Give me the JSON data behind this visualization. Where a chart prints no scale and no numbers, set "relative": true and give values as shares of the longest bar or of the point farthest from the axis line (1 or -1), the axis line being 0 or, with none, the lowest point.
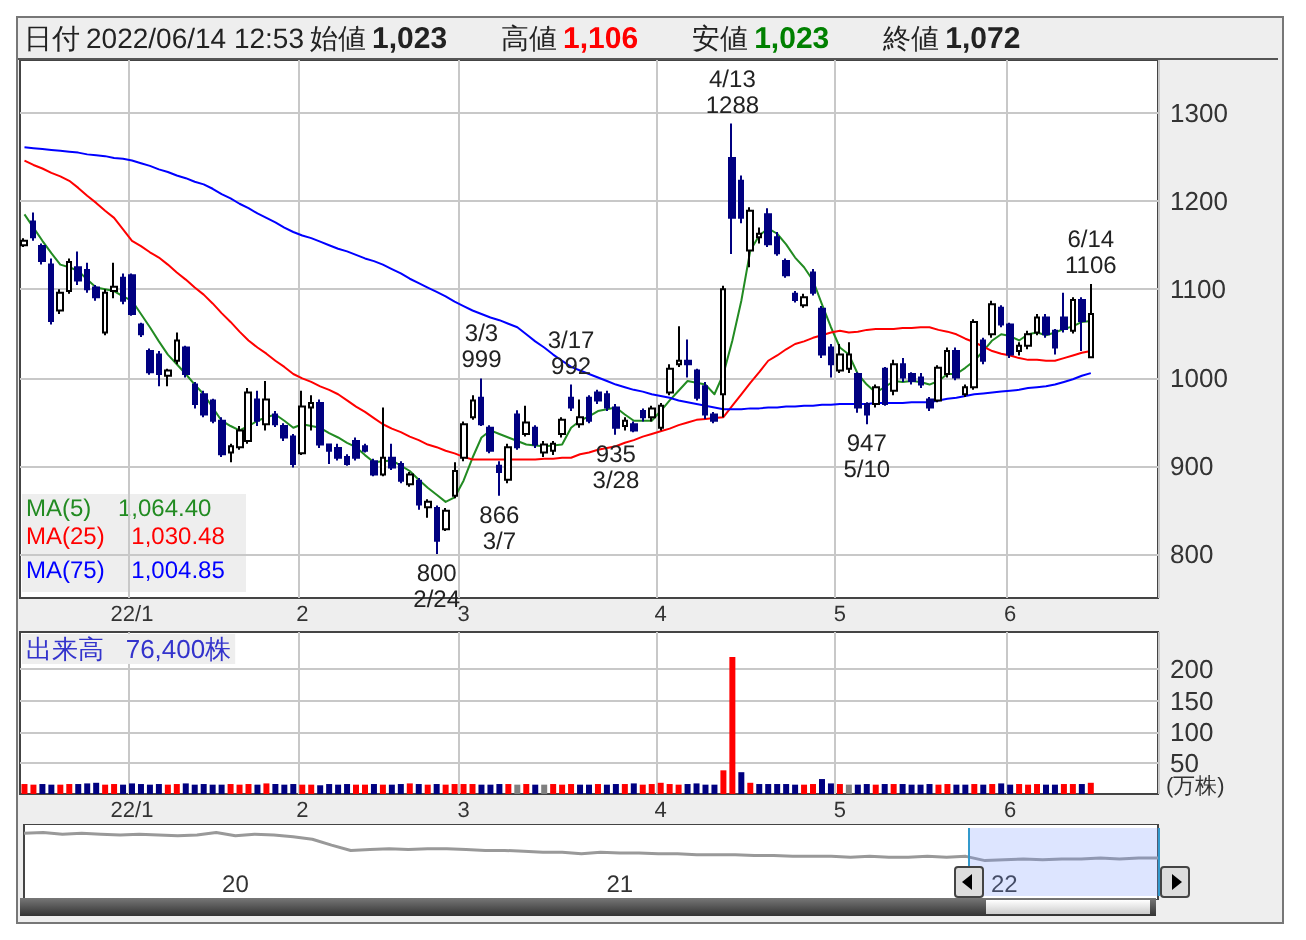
{
  "chart_data": [
    {
      "type": "candlestick",
      "categories": [
        null,
        null,
        null,
        null,
        null,
        null,
        null,
        null,
        null,
        null,
        null,
        null,
        "22/1",
        null,
        null,
        null,
        null,
        null,
        null,
        null,
        null,
        null,
        null,
        null,
        null,
        null,
        null,
        null,
        null,
        null,
        null,
        "2",
        null,
        null,
        null,
        null,
        null,
        null,
        null,
        null,
        null,
        null,
        null,
        null,
        null,
        null,
        null,
        null,
        null,
        "3",
        null,
        null,
        null,
        null,
        null,
        null,
        null,
        null,
        null,
        null,
        null,
        null,
        null,
        null,
        null,
        null,
        null,
        null,
        null,
        null,
        null,
        "4",
        null,
        null,
        null,
        null,
        null,
        null,
        null,
        null,
        null,
        null,
        null,
        null,
        null,
        null,
        null,
        null,
        null,
        null,
        null,
        "5",
        null,
        null,
        null,
        null,
        null,
        null,
        null,
        null,
        null,
        null,
        null,
        null,
        null,
        null,
        null,
        null,
        null,
        null,
        "6",
        null,
        null,
        null,
        null,
        null,
        null,
        null,
        null,
        null
      ],
      "ohlc": [
        [
          1150,
          1158,
          1148,
          1155
        ],
        [
          1177,
          1187,
          1155,
          1159
        ],
        [
          1149,
          1152,
          1128,
          1132
        ],
        [
          1128,
          1135,
          1060,
          1064
        ],
        [
          1076,
          1100,
          1072,
          1096
        ],
        [
          1098,
          1135,
          1095,
          1131
        ],
        [
          1125,
          1143,
          1105,
          1110
        ],
        [
          1122,
          1130,
          1096,
          1100
        ],
        [
          1102,
          1105,
          1087,
          1091
        ],
        [
          1051,
          1100,
          1048,
          1096
        ],
        [
          1098,
          1130,
          1090,
          1103
        ],
        [
          1113,
          1118,
          1083,
          1087
        ],
        [
          1116,
          1118,
          1070,
          1072
        ],
        [
          1060,
          1062,
          1046,
          1049
        ],
        [
          1030,
          1033,
          1003,
          1006
        ],
        [
          1026,
          1030,
          990,
          1004
        ],
        [
          1002,
          1010,
          990,
          1008
        ],
        [
          1019,
          1051,
          1015,
          1042
        ],
        [
          1034,
          1036,
          1000,
          1004
        ],
        [
          992,
          995,
          965,
          970
        ],
        [
          981,
          985,
          955,
          958
        ],
        [
          974,
          976,
          948,
          951
        ],
        [
          951,
          955,
          910,
          913
        ],
        [
          915,
          925,
          904,
          922
        ],
        [
          921,
          945,
          918,
          940
        ],
        [
          928,
          988,
          925,
          983
        ],
        [
          975,
          985,
          945,
          951
        ],
        [
          947,
          996,
          940,
          975
        ],
        [
          958,
          962,
          944,
          947
        ],
        [
          945,
          948,
          928,
          932
        ],
        [
          933,
          936,
          898,
          902
        ],
        [
          914,
          985,
          912,
          967
        ],
        [
          966,
          980,
          940,
          971
        ],
        [
          971,
          975,
          920,
          924
        ],
        [
          924,
          925,
          902,
          917
        ],
        [
          920,
          925,
          906,
          909
        ],
        [
          910,
          913,
          900,
          902
        ],
        [
          928,
          932,
          906,
          909
        ],
        [
          922,
          925,
          915,
          917
        ],
        [
          905,
          908,
          888,
          890
        ],
        [
          890,
          966,
          888,
          909
        ],
        [
          909,
          925,
          895,
          898
        ],
        [
          902,
          905,
          880,
          883
        ],
        [
          879,
          893,
          876,
          890
        ],
        [
          883,
          886,
          850,
          856
        ],
        [
          853,
          862,
          841,
          859
        ],
        [
          852,
          855,
          800,
          815
        ],
        [
          828,
          852,
          826,
          849
        ],
        [
          866,
          904,
          863,
          894
        ],
        [
          909,
          950,
          905,
          947
        ],
        [
          955,
          980,
          952,
          974
        ],
        [
          977,
          999,
          945,
          947
        ],
        [
          943,
          946,
          914,
          917
        ],
        [
          900,
          905,
          866,
          893
        ],
        [
          884,
          925,
          880,
          921
        ],
        [
          958,
          963,
          918,
          921
        ],
        [
          936,
          968,
          933,
          949
        ],
        [
          943,
          946,
          920,
          924
        ],
        [
          915,
          928,
          910,
          924
        ],
        [
          917,
          928,
          912,
          925
        ],
        [
          936,
          955,
          932,
          952
        ],
        [
          977,
          992,
          962,
          966
        ],
        [
          947,
          975,
          943,
          955
        ],
        [
          977,
          980,
          948,
          951
        ],
        [
          983,
          986,
          970,
          974
        ],
        [
          981,
          985,
          962,
          966
        ],
        [
          966,
          970,
          935,
          943
        ],
        [
          945,
          955,
          940,
          951
        ],
        [
          947,
          950,
          938,
          940
        ],
        [
          962,
          965,
          950,
          955
        ],
        [
          955,
          968,
          950,
          965
        ],
        [
          943,
          971,
          940,
          968
        ],
        [
          983,
          1015,
          980,
          1010
        ],
        [
          1015,
          1058,
          1012,
          1019
        ],
        [
          1019,
          1043,
          1000,
          1015
        ],
        [
          1008,
          1010,
          974,
          977
        ],
        [
          990,
          995,
          953,
          958
        ],
        [
          958,
          961,
          948,
          951
        ],
        [
          981,
          1104,
          955,
          1100
        ],
        [
          1249,
          1288,
          1140,
          1181
        ],
        [
          1223,
          1229,
          1175,
          1181
        ],
        [
          1144,
          1193,
          1125,
          1189
        ],
        [
          1159,
          1170,
          1152,
          1163
        ],
        [
          1185,
          1192,
          1148,
          1151
        ],
        [
          1159,
          1165,
          1138,
          1141
        ],
        [
          1132,
          1135,
          1113,
          1116
        ],
        [
          1095,
          1098,
          1085,
          1088
        ],
        [
          1082,
          1095,
          1079,
          1091
        ],
        [
          1119,
          1123,
          1093,
          1096
        ],
        [
          1078,
          1081,
          1022,
          1026
        ],
        [
          1034,
          1038,
          1000,
          1015
        ],
        [
          1008,
          1038,
          1005,
          1026
        ],
        [
          1010,
          1040,
          1005,
          1026
        ],
        [
          1004,
          1006,
          960,
          966
        ],
        [
          970,
          972,
          947,
          958
        ],
        [
          970,
          992,
          966,
          989
        ],
        [
          1010,
          1012,
          968,
          970
        ],
        [
          985,
          1020,
          980,
          1015
        ],
        [
          1015,
          1022,
          995,
          1000
        ],
        [
          1004,
          1006,
          992,
          996
        ],
        [
          1000,
          1005,
          988,
          992
        ],
        [
          975,
          978,
          962,
          966
        ],
        [
          974,
          1014,
          972,
          1011
        ],
        [
          1004,
          1034,
          1000,
          1030
        ],
        [
          1030,
          1034,
          997,
          1000
        ],
        [
          981,
          992,
          978,
          989
        ],
        [
          989,
          1066,
          986,
          1063
        ],
        [
          1042,
          1045,
          1015,
          1019
        ],
        [
          1049,
          1087,
          1045,
          1083
        ],
        [
          1079,
          1082,
          1057,
          1060
        ],
        [
          1060,
          1062,
          1022,
          1026
        ],
        [
          1030,
          1040,
          1025,
          1036
        ],
        [
          1036,
          1053,
          1032,
          1049
        ],
        [
          1051,
          1072,
          1048,
          1068
        ],
        [
          1068,
          1072,
          1045,
          1049
        ],
        [
          1053,
          1055,
          1026,
          1034
        ],
        [
          1068,
          1096,
          1051,
          1055
        ],
        [
          1053,
          1091,
          1050,
          1088
        ],
        [
          1088,
          1091,
          1030,
          1064
        ],
        [
          1023,
          1106,
          1023,
          1072
        ]
      ],
      "series": [
        {
          "type": "line",
          "name": "MA(5)",
          "color": "#228b22",
          "values": [
            1185,
            1170,
            1155,
            1141,
            1128,
            1125,
            1121,
            1111,
            1102,
            1100,
            1098,
            1092,
            1087,
            1072,
            1057,
            1041,
            1026,
            1015,
            1004,
            992,
            981,
            966,
            951,
            945,
            940,
            945,
            951,
            955,
            958,
            951,
            943,
            947,
            945,
            943,
            937,
            932,
            926,
            921,
            912,
            904,
            905,
            906,
            900,
            894,
            884,
            875,
            867,
            859,
            864,
            883,
            909,
            932,
            940,
            936,
            932,
            928,
            924,
            923,
            922,
            923,
            924,
            943,
            951,
            956,
            962,
            964,
            966,
            958,
            951,
            951,
            951,
            962,
            974,
            985,
            996,
            994,
            992,
            981,
            1004,
            1042,
            1087,
            1144,
            1161,
            1169,
            1163,
            1151,
            1136,
            1125,
            1110,
            1083,
            1057,
            1034,
            1026,
            1004,
            992,
            983,
            989,
            996,
            995,
            996,
            995,
            992,
            996,
            1004,
            1004,
            1011,
            1019,
            1030,
            1042,
            1049,
            1047,
            1042,
            1049,
            1051,
            1048,
            1051,
            1055,
            1058,
            1063,
            1064
          ]
        },
        {
          "type": "line",
          "name": "MA(25)",
          "color": "#ff0000",
          "values": [
            1246,
            1241,
            1237,
            1232,
            1228,
            1223,
            1215,
            1206,
            1198,
            1189,
            1181,
            1168,
            1155,
            1149,
            1142,
            1136,
            1128,
            1119,
            1111,
            1102,
            1094,
            1084,
            1073,
            1063,
            1052,
            1042,
            1034,
            1027,
            1019,
            1012,
            1004,
            999,
            995,
            990,
            986,
            981,
            974,
            967,
            961,
            954,
            947,
            942,
            938,
            933,
            929,
            924,
            921,
            917,
            914,
            910,
            907,
            907,
            907,
            907,
            907,
            907,
            907,
            907,
            908,
            908,
            909,
            909,
            913,
            915,
            918,
            920,
            922,
            926,
            929,
            933,
            936,
            939,
            942,
            946,
            949,
            952,
            953,
            954,
            955,
            968,
            981,
            994,
            1006,
            1019,
            1025,
            1032,
            1038,
            1041,
            1045,
            1048,
            1051,
            1053,
            1051,
            1052,
            1054,
            1055,
            1055,
            1055,
            1056,
            1056,
            1057,
            1057,
            1054,
            1052,
            1049,
            1044,
            1040,
            1035,
            1030,
            1027,
            1025,
            1022,
            1020,
            1020,
            1019,
            1019,
            1022,
            1025,
            1028,
            1030
          ]
        },
        {
          "type": "line",
          "name": "MA(75)",
          "color": "#0000ff",
          "values": [
            1261,
            1260,
            1259,
            1258,
            1257,
            1256,
            1255,
            1253,
            1252,
            1251,
            1249,
            1248,
            1246,
            1243,
            1240,
            1236,
            1233,
            1229,
            1226,
            1222,
            1219,
            1214,
            1208,
            1203,
            1197,
            1192,
            1186,
            1181,
            1176,
            1170,
            1165,
            1161,
            1158,
            1154,
            1150,
            1146,
            1143,
            1139,
            1135,
            1132,
            1128,
            1123,
            1118,
            1112,
            1107,
            1102,
            1097,
            1092,
            1086,
            1081,
            1076,
            1072,
            1068,
            1065,
            1061,
            1057,
            1049,
            1041,
            1034,
            1026,
            1019,
            1012,
            1008,
            1004,
            1000,
            996,
            992,
            989,
            986,
            984,
            981,
            979,
            977,
            974,
            972,
            970,
            968,
            966,
            964,
            964,
            964,
            965,
            965,
            966,
            966,
            967,
            967,
            968,
            968,
            969,
            969,
            970,
            970,
            970,
            970,
            971,
            971,
            971,
            971,
            972,
            972,
            972,
            974,
            976,
            977,
            979,
            981,
            982,
            983,
            984,
            985,
            986,
            988,
            989,
            990,
            992,
            995,
            998,
            1002,
            1005
          ]
        }
      ],
      "ylim": [
        750,
        1360
      ],
      "yticks": [
        800,
        900,
        1000,
        1100,
        1200,
        1300
      ],
      "grid": true,
      "annotations": [
        "日付",
        "2022/06/14 12:53",
        "始値",
        "1,023",
        "高値",
        "1,106",
        "安値",
        "1,023",
        "終値",
        "1,072",
        "1,064.40",
        "1,030.48",
        "1,004.85",
        {
          "text": "4/13 1288",
          "y": 1288
        },
        {
          "text": "3/3 999",
          "y": 999
        },
        {
          "text": "3/17 992",
          "y": 992
        },
        {
          "text": "6/14 1106",
          "y": 1106
        },
        {
          "text": "800 2/24",
          "y": 800
        },
        {
          "text": "866 3/7",
          "y": 866
        },
        {
          "text": "935 3/28",
          "y": 935
        },
        {
          "text": "947 5/10",
          "y": 947
        }
      ]
    },
    {
      "type": "bar",
      "categories": [
        null,
        null,
        null,
        null,
        null,
        null,
        null,
        null,
        null,
        null,
        null,
        null,
        "22/1",
        null,
        null,
        null,
        null,
        null,
        null,
        null,
        null,
        null,
        null,
        null,
        null,
        null,
        null,
        null,
        null,
        null,
        null,
        "2",
        null,
        null,
        null,
        null,
        null,
        null,
        null,
        null,
        null,
        null,
        null,
        null,
        null,
        null,
        null,
        null,
        null,
        "3",
        null,
        null,
        null,
        null,
        null,
        null,
        null,
        null,
        null,
        null,
        null,
        null,
        null,
        null,
        null,
        null,
        null,
        null,
        null,
        null,
        null,
        "4",
        null,
        null,
        null,
        null,
        null,
        null,
        null,
        null,
        null,
        null,
        null,
        null,
        null,
        null,
        null,
        null,
        null,
        null,
        null,
        "5",
        null,
        null,
        null,
        null,
        null,
        null,
        null,
        null,
        null,
        null,
        null,
        null,
        null,
        null,
        null,
        null,
        null,
        null,
        "6",
        null,
        null,
        null,
        null,
        null,
        null,
        null,
        null,
        null
      ],
      "values": [
        16,
        15,
        16,
        15,
        15,
        16,
        16,
        17,
        18,
        15,
        16,
        15,
        17,
        16,
        15,
        16,
        15,
        16,
        17,
        15,
        16,
        15,
        15,
        16,
        15,
        16,
        15,
        17,
        16,
        15,
        16,
        15,
        15,
        14,
        16,
        15,
        16,
        15,
        15,
        16,
        15,
        15,
        16,
        17,
        16,
        15,
        16,
        15,
        16,
        16,
        16,
        15,
        15,
        16,
        16,
        15,
        16,
        15,
        15,
        16,
        15,
        16,
        15,
        15,
        16,
        15,
        16,
        16,
        17,
        15,
        16,
        18,
        16,
        15,
        16,
        17,
        15,
        15,
        38,
        220,
        35,
        18,
        16,
        16,
        16,
        16,
        15,
        15,
        16,
        24,
        17,
        16,
        15,
        15,
        16,
        15,
        16,
        16,
        16,
        15,
        15,
        16,
        15,
        16,
        15,
        15,
        16,
        15,
        16,
        17,
        15,
        16,
        15,
        16,
        15,
        15,
        16,
        16,
        16,
        18
      ],
      "colors": [
        "#ff0000",
        "#ff0000",
        "#000080",
        "#000080",
        "#ff0000",
        "#ff0000",
        "#000080",
        "#000080",
        "#000080",
        "#ff0000",
        "#ff0000",
        "#000080",
        "#000080",
        "#000080",
        "#000080",
        "#000080",
        "#ff0000",
        "#ff0000",
        "#000080",
        "#000080",
        "#000080",
        "#000080",
        "#000080",
        "#ff0000",
        "#ff0000",
        "#ff0000",
        "#000080",
        "#ff0000",
        "#000080",
        "#000080",
        "#000080",
        "#ff0000",
        "#ff0000",
        "#000080",
        "#000080",
        "#000080",
        "#000080",
        "#ff0000",
        "#ff0000",
        "#000080",
        "#ff0000",
        "#000080",
        "#000080",
        "#ff0000",
        "#000080",
        "#ff0000",
        "#000080",
        "#ff0000",
        "#ff0000",
        "#ff0000",
        "#ff0000",
        "#000080",
        "#000080",
        "#000080",
        "#ff0000",
        "#808080",
        "#ff0000",
        "#000080",
        "#808080",
        "#ff0000",
        "#ff0000",
        "#ff0000",
        "#000080",
        "#000080",
        "#ff0000",
        "#000080",
        "#000080",
        "#ff0000",
        "#000080",
        "#ff0000",
        "#ff0000",
        "#ff0000",
        "#ff0000",
        "#ff0000",
        "#000080",
        "#000080",
        "#000080",
        "#000080",
        "#ff0000",
        "#ff0000",
        "#000080",
        "#ff0000",
        "#000080",
        "#000080",
        "#000080",
        "#000080",
        "#000080",
        "#ff0000",
        "#ff0000",
        "#000080",
        "#000080",
        "#ff0000",
        "#808080",
        "#000080",
        "#000080",
        "#ff0000",
        "#000080",
        "#ff0000",
        "#000080",
        "#000080",
        "#000080",
        "#000080",
        "#ff0000",
        "#ff0000",
        "#000080",
        "#000080",
        "#ff0000",
        "#000080",
        "#ff0000",
        "#000080",
        "#000080",
        "#ff0000",
        "#ff0000",
        "#ff0000",
        "#000080",
        "#000080",
        "#ff0000",
        "#ff0000",
        "#000080",
        "#ff0000"
      ],
      "ylim": [
        0,
        260
      ],
      "yticks": [
        50,
        100,
        150,
        200
      ],
      "ylabel": "(万株)",
      "grid": true,
      "annotations": [
        "出来高",
        "76,400株"
      ]
    },
    {
      "type": "line",
      "relative": true,
      "color": "#999999",
      "tick_labels": "x",
      "categories": [
        null,
        null,
        null,
        null,
        null,
        null,
        null,
        null,
        null,
        null,
        null,
        "20",
        null,
        null,
        null,
        null,
        null,
        null,
        null,
        null,
        null,
        null,
        null,
        null,
        null,
        null,
        null,
        null,
        null,
        null,
        null,
        "21",
        null,
        null,
        null,
        null,
        null,
        null,
        null,
        null,
        null,
        null,
        null,
        null,
        null,
        null,
        null,
        null,
        null,
        null,
        null,
        "22",
        null,
        null,
        null,
        null,
        null,
        null,
        null,
        null
      ],
      "values": [
        0.97,
        1,
        0.94,
        0.97,
        0.94,
        0.91,
        0.94,
        0.91,
        0.88,
        0.91,
        1,
        0.88,
        0.94,
        0.91,
        0.85,
        0.76,
        0.55,
        0.36,
        0.39,
        0.42,
        0.39,
        0.42,
        0.42,
        0.39,
        0.36,
        0.36,
        0.33,
        0.3,
        0.3,
        0.24,
        0.3,
        0.27,
        0.27,
        0.24,
        0.24,
        0.21,
        0.21,
        0.21,
        0.18,
        0.18,
        0.15,
        0.15,
        0.15,
        0.12,
        0.15,
        0.12,
        0.12,
        0.15,
        0.12,
        0.15,
        0,
        0.03,
        0.06,
        0.03,
        0.06,
        0.06,
        0.09,
        0.06,
        0.09,
        0.09
      ]
    }
  ]
}
